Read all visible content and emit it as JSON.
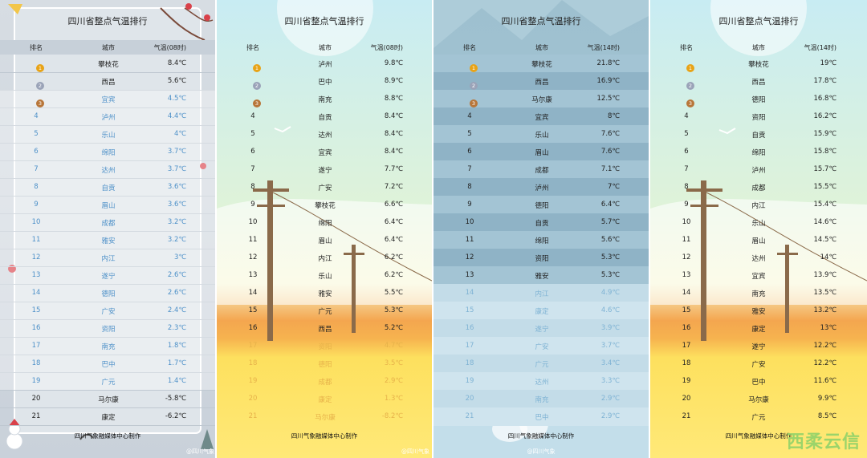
{
  "panels": [
    {
      "title": "四川省整点气温排行",
      "headers": {
        "rank": "排名",
        "city": "城市",
        "temp": "气温(08时)"
      },
      "rows": [
        {
          "rank": "1",
          "city": "攀枝花",
          "temp": "8.4℃"
        },
        {
          "rank": "2",
          "city": "西昌",
          "temp": "5.6℃"
        },
        {
          "rank": "3",
          "city": "宜宾",
          "temp": "4.5℃"
        },
        {
          "rank": "4",
          "city": "泸州",
          "temp": "4.4℃"
        },
        {
          "rank": "5",
          "city": "乐山",
          "temp": "4℃"
        },
        {
          "rank": "6",
          "city": "绵阳",
          "temp": "3.7℃"
        },
        {
          "rank": "7",
          "city": "达州",
          "temp": "3.7℃"
        },
        {
          "rank": "8",
          "city": "自贡",
          "temp": "3.6℃"
        },
        {
          "rank": "9",
          "city": "眉山",
          "temp": "3.6℃"
        },
        {
          "rank": "10",
          "city": "成都",
          "temp": "3.2℃"
        },
        {
          "rank": "11",
          "city": "雅安",
          "temp": "3.2℃"
        },
        {
          "rank": "12",
          "city": "内江",
          "temp": "3℃"
        },
        {
          "rank": "13",
          "city": "遂宁",
          "temp": "2.6℃"
        },
        {
          "rank": "14",
          "city": "德阳",
          "temp": "2.6℃"
        },
        {
          "rank": "15",
          "city": "广安",
          "temp": "2.4℃"
        },
        {
          "rank": "16",
          "city": "资阳",
          "temp": "2.3℃"
        },
        {
          "rank": "17",
          "city": "南充",
          "temp": "1.8℃"
        },
        {
          "rank": "18",
          "city": "巴中",
          "temp": "1.7℃"
        },
        {
          "rank": "19",
          "city": "广元",
          "temp": "1.4℃"
        },
        {
          "rank": "20",
          "city": "马尔康",
          "temp": "-5.8℃"
        },
        {
          "rank": "21",
          "city": "康定",
          "temp": "-6.2℃"
        }
      ],
      "footer": "四川气象融媒体中心制作",
      "watermark": "@四川气象"
    },
    {
      "title": "四川省整点气温排行",
      "headers": {
        "rank": "排名",
        "city": "城市",
        "temp": "气温(08时)"
      },
      "rows": [
        {
          "rank": "1",
          "city": "泸州",
          "temp": "9.8℃"
        },
        {
          "rank": "2",
          "city": "巴中",
          "temp": "8.9℃"
        },
        {
          "rank": "3",
          "city": "南充",
          "temp": "8.8℃"
        },
        {
          "rank": "4",
          "city": "自贡",
          "temp": "8.4℃"
        },
        {
          "rank": "5",
          "city": "达州",
          "temp": "8.4℃"
        },
        {
          "rank": "6",
          "city": "宜宾",
          "temp": "8.4℃"
        },
        {
          "rank": "7",
          "city": "遂宁",
          "temp": "7.7℃"
        },
        {
          "rank": "8",
          "city": "广安",
          "temp": "7.2℃"
        },
        {
          "rank": "9",
          "city": "攀枝花",
          "temp": "6.6℃"
        },
        {
          "rank": "10",
          "city": "绵阳",
          "temp": "6.4℃"
        },
        {
          "rank": "11",
          "city": "眉山",
          "temp": "6.4℃"
        },
        {
          "rank": "12",
          "city": "内江",
          "temp": "6.2℃"
        },
        {
          "rank": "13",
          "city": "乐山",
          "temp": "6.2℃"
        },
        {
          "rank": "14",
          "city": "雅安",
          "temp": "5.5℃"
        },
        {
          "rank": "15",
          "city": "广元",
          "temp": "5.3℃"
        },
        {
          "rank": "16",
          "city": "西昌",
          "temp": "5.2℃"
        },
        {
          "rank": "17",
          "city": "资阳",
          "temp": "4.7℃"
        },
        {
          "rank": "18",
          "city": "德阳",
          "temp": "3.5℃"
        },
        {
          "rank": "19",
          "city": "成都",
          "temp": "2.9℃"
        },
        {
          "rank": "20",
          "city": "康定",
          "temp": "1.3℃"
        },
        {
          "rank": "21",
          "city": "马尔康",
          "temp": "-8.2℃"
        }
      ],
      "footer": "四川气象融媒体中心制作",
      "watermark": "@四川气象"
    },
    {
      "title": "四川省整点气温排行",
      "headers": {
        "rank": "排名",
        "city": "城市",
        "temp": "气温(14时)"
      },
      "rows": [
        {
          "rank": "1",
          "city": "攀枝花",
          "temp": "21.8℃"
        },
        {
          "rank": "2",
          "city": "西昌",
          "temp": "16.9℃"
        },
        {
          "rank": "3",
          "city": "马尔康",
          "temp": "12.5℃"
        },
        {
          "rank": "4",
          "city": "宜宾",
          "temp": "8℃"
        },
        {
          "rank": "5",
          "city": "乐山",
          "temp": "7.6℃"
        },
        {
          "rank": "6",
          "city": "眉山",
          "temp": "7.6℃"
        },
        {
          "rank": "7",
          "city": "成都",
          "temp": "7.1℃"
        },
        {
          "rank": "8",
          "city": "泸州",
          "temp": "7℃"
        },
        {
          "rank": "9",
          "city": "德阳",
          "temp": "6.4℃"
        },
        {
          "rank": "10",
          "city": "自贡",
          "temp": "5.7℃"
        },
        {
          "rank": "11",
          "city": "绵阳",
          "temp": "5.6℃"
        },
        {
          "rank": "12",
          "city": "资阳",
          "temp": "5.3℃"
        },
        {
          "rank": "13",
          "city": "雅安",
          "temp": "5.3℃"
        },
        {
          "rank": "14",
          "city": "内江",
          "temp": "4.9℃"
        },
        {
          "rank": "15",
          "city": "康定",
          "temp": "4.6℃"
        },
        {
          "rank": "16",
          "city": "遂宁",
          "temp": "3.9℃"
        },
        {
          "rank": "17",
          "city": "广安",
          "temp": "3.7℃"
        },
        {
          "rank": "18",
          "city": "广元",
          "temp": "3.4℃"
        },
        {
          "rank": "19",
          "city": "达州",
          "temp": "3.3℃"
        },
        {
          "rank": "20",
          "city": "南充",
          "temp": "2.9℃"
        },
        {
          "rank": "21",
          "city": "巴中",
          "temp": "2.9℃"
        }
      ],
      "footer": "四川气象融媒体中心制作",
      "watermark": "@四川气象"
    },
    {
      "title": "四川省整点气温排行",
      "headers": {
        "rank": "排名",
        "city": "城市",
        "temp": "气温(14时)"
      },
      "rows": [
        {
          "rank": "1",
          "city": "攀枝花",
          "temp": "19℃"
        },
        {
          "rank": "2",
          "city": "西昌",
          "temp": "17.8℃"
        },
        {
          "rank": "3",
          "city": "德阳",
          "temp": "16.8℃"
        },
        {
          "rank": "4",
          "city": "资阳",
          "temp": "16.2℃"
        },
        {
          "rank": "5",
          "city": "自贡",
          "temp": "15.9℃"
        },
        {
          "rank": "6",
          "city": "绵阳",
          "temp": "15.8℃"
        },
        {
          "rank": "7",
          "city": "泸州",
          "temp": "15.7℃"
        },
        {
          "rank": "8",
          "city": "成都",
          "temp": "15.5℃"
        },
        {
          "rank": "9",
          "city": "内江",
          "temp": "15.4℃"
        },
        {
          "rank": "10",
          "city": "乐山",
          "temp": "14.6℃"
        },
        {
          "rank": "11",
          "city": "眉山",
          "temp": "14.5℃"
        },
        {
          "rank": "12",
          "city": "达州",
          "temp": "14℃"
        },
        {
          "rank": "13",
          "city": "宜宾",
          "temp": "13.9℃"
        },
        {
          "rank": "14",
          "city": "南充",
          "temp": "13.5℃"
        },
        {
          "rank": "15",
          "city": "雅安",
          "temp": "13.2℃"
        },
        {
          "rank": "16",
          "city": "康定",
          "temp": "13℃"
        },
        {
          "rank": "17",
          "city": "遂宁",
          "temp": "12.2℃"
        },
        {
          "rank": "18",
          "city": "广安",
          "temp": "12.2℃"
        },
        {
          "rank": "19",
          "city": "巴中",
          "temp": "11.6℃"
        },
        {
          "rank": "20",
          "city": "马尔康",
          "temp": "9.9℃"
        },
        {
          "rank": "21",
          "city": "广元",
          "temp": "8.5℃"
        }
      ],
      "footer": "四川气象融媒体中心制作",
      "watermark": "",
      "brand": "西柔云信"
    }
  ],
  "colors": {
    "gold": "#e8a317",
    "silver": "#9aa3b8",
    "bronze": "#b8763a",
    "panel1_rowblue": "#4d90c8",
    "panel3_rowlight": "#8fb3c6",
    "panel3_rowdark": "#7fa6bb"
  },
  "icons": [
    "medal-icon",
    "snowman-icon",
    "plum-blossom-icon",
    "utility-pole-icon",
    "seagull-icon"
  ]
}
